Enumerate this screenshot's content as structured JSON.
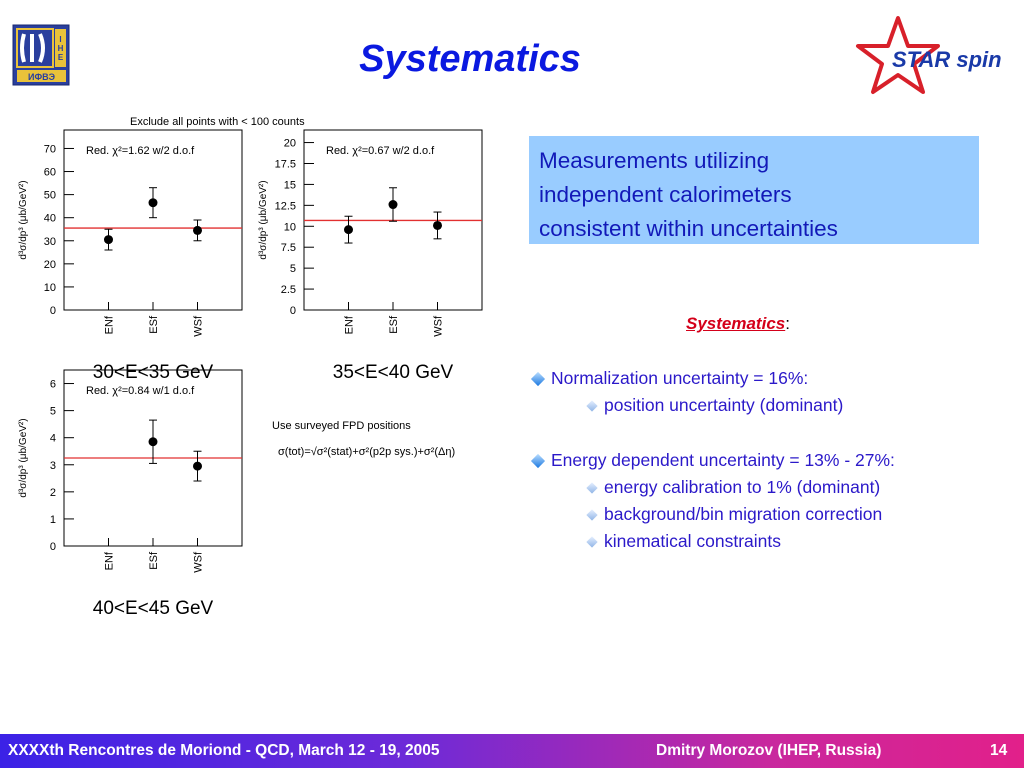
{
  "title": "Systematics",
  "logo_ihep_text": "ИФВЭ IHEP",
  "logo_star_text": "STAR spin",
  "plots_note": "Exclude all points with < 100 counts",
  "fpd_note": "Use surveyed FPD positions",
  "formula": "σ(tot)=√σ²(stat)+σ²(p2p sys.)+σ²(Δη)",
  "blue_box": [
    "Measurements utilizing",
    "independent calorimeters",
    "consistent within uncertainties"
  ],
  "systematics_heading": "Systematics",
  "systematics_colon": ":",
  "bullets": {
    "normalization": "Normalization uncertainty = 16%:",
    "position": "position uncertainty (dominant)",
    "energy": "Energy dependent uncertainty = 13% - 27%:",
    "calibration": "energy calibration to 1% (dominant)",
    "background": "background/bin migration correction",
    "kinematical": "kinematical constraints"
  },
  "footer": {
    "left": "XXXXth Rencontres de Moriond - QCD, March 12 - 19, 2005",
    "right": "Dmitry Morozov (IHEP, Russia)",
    "page": "14"
  },
  "chart_data": [
    {
      "type": "scatter",
      "ylabel": "d³σ/dp³ (μb/GeV²)",
      "xlabel": "30<E<35 GeV",
      "annotation": "Red. χ²=1.62 w/2 d.o.f",
      "categories": [
        "ENf",
        "ESf",
        "WSf"
      ],
      "values": [
        30.5,
        46.5,
        34.5
      ],
      "errors": [
        4.5,
        6.5,
        4.5
      ],
      "fit_line": 35.5,
      "yticks": [
        "0",
        "10",
        "20",
        "30",
        "40",
        "50",
        "60",
        "70"
      ],
      "ylim": [
        0,
        78
      ]
    },
    {
      "type": "scatter",
      "ylabel": "d³σ/dp³ (μb/GeV²)",
      "xlabel": "35<E<40 GeV",
      "annotation": "Red. χ²=0.67 w/2 d.o.f",
      "categories": [
        "ENf",
        "ESf",
        "WSf"
      ],
      "values": [
        9.6,
        12.6,
        10.1
      ],
      "errors": [
        1.6,
        2.0,
        1.6
      ],
      "fit_line": 10.7,
      "yticks": [
        "0",
        "2.5",
        "5",
        "7.5",
        "10",
        "12.5",
        "15",
        "17.5",
        "20"
      ],
      "ylim": [
        0,
        21.5
      ]
    },
    {
      "type": "scatter",
      "ylabel": "d³σ/dp³ (μb/GeV²)",
      "xlabel": "40<E<45 GeV",
      "annotation": "Red. χ²=0.84 w/1 d.o.f",
      "categories": [
        "ENf",
        "ESf",
        "WSf"
      ],
      "values": [
        null,
        3.85,
        2.95
      ],
      "errors": [
        null,
        0.8,
        0.55
      ],
      "fit_line": 3.25,
      "yticks": [
        "0",
        "1",
        "2",
        "3",
        "4",
        "5",
        "6"
      ],
      "ylim": [
        0,
        6.5
      ]
    }
  ]
}
